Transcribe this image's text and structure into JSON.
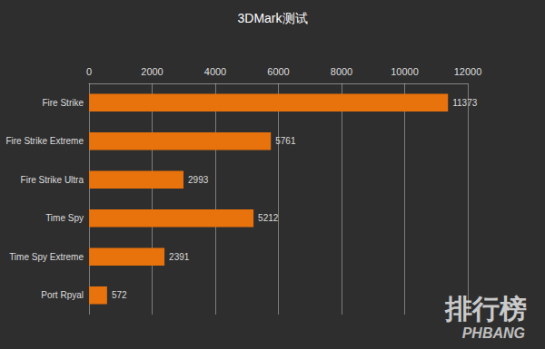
{
  "chart_data": {
    "type": "bar",
    "title": "3DMark测试",
    "orientation": "horizontal",
    "categories": [
      "Fire Strike",
      "Fire Strike Extreme",
      "Fire Strike Ultra",
      "Time Spy",
      "Time Spy Extreme",
      "Port Rpyal"
    ],
    "values": [
      11373,
      5761,
      2993,
      5212,
      2391,
      572
    ],
    "color": "#e8720c",
    "xlim": [
      0,
      12000
    ],
    "xticks": [
      0,
      2000,
      4000,
      6000,
      8000,
      10000,
      12000
    ],
    "grid": true,
    "data_labels": true,
    "annotations": [
      "排行榜",
      "PHBANG"
    ]
  }
}
